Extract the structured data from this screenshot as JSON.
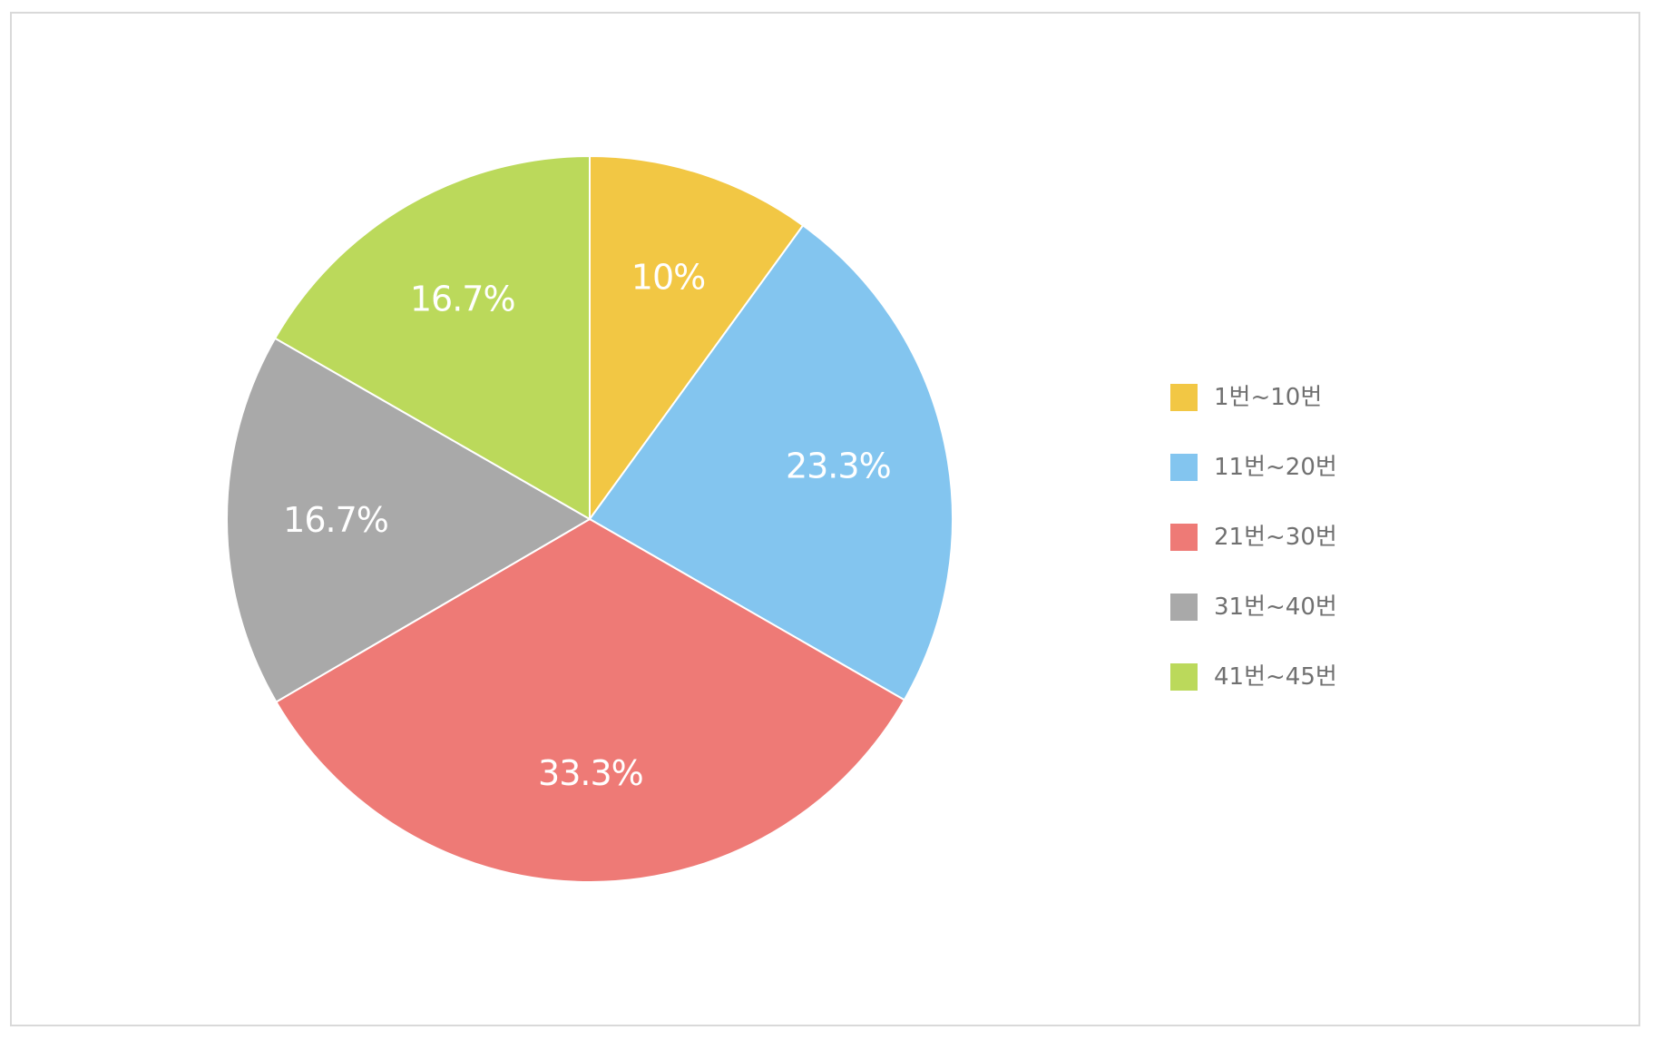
{
  "chart_data": {
    "type": "pie",
    "title": "",
    "categories": [
      "1번~10번",
      "11번~20번",
      "21번~30번",
      "31번~40번",
      "41번~45번"
    ],
    "values": [
      10,
      23.3,
      33.3,
      16.7,
      16.7
    ],
    "value_labels": [
      "10%",
      "23.3%",
      "33.3%",
      "16.7%",
      "16.7%"
    ],
    "colors": [
      "#F2C744",
      "#83C5EF",
      "#EE7A76",
      "#A9A9A9",
      "#BBD95B"
    ],
    "start_angle": "12 o'clock",
    "direction": "clockwise",
    "legend": {
      "placement": "right",
      "entries": [
        "1번~10번",
        "11번~20번",
        "21번~30번",
        "31번~40번",
        "41번~45번"
      ]
    }
  }
}
